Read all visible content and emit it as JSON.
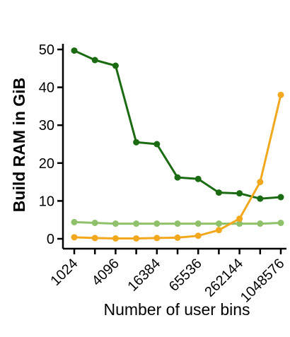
{
  "chart_data": {
    "type": "line",
    "xlabel": "Number of user bins",
    "ylabel": "Build RAM in GiB",
    "x": [
      1024,
      2048,
      4096,
      8192,
      16384,
      32768,
      65536,
      131072,
      262144,
      524288,
      1048576
    ],
    "xtick_labels": [
      "1024",
      "4096",
      "16384",
      "65536",
      "262144",
      "1048576"
    ],
    "xtick_values": [
      1024,
      4096,
      16384,
      65536,
      262144,
      1048576
    ],
    "xscale": "log2",
    "ylim": [
      0,
      50
    ],
    "yticks": [
      0,
      10,
      20,
      30,
      40,
      50
    ],
    "grid": false,
    "series": [
      {
        "color": "#1b6b12",
        "values": [
          49.7,
          47.2,
          45.7,
          25.5,
          25.0,
          16.2,
          15.8,
          12.2,
          12.0,
          10.6,
          11.0
        ]
      },
      {
        "color": "#8fc06a",
        "values": [
          4.4,
          4.2,
          4.0,
          4.0,
          4.0,
          4.0,
          4.0,
          4.0,
          4.0,
          4.0,
          4.2
        ]
      },
      {
        "color": "#f2a81d",
        "values": [
          0.4,
          0.2,
          0.1,
          0.1,
          0.2,
          0.3,
          0.8,
          2.3,
          5.3,
          15.0,
          38.0
        ]
      }
    ]
  }
}
